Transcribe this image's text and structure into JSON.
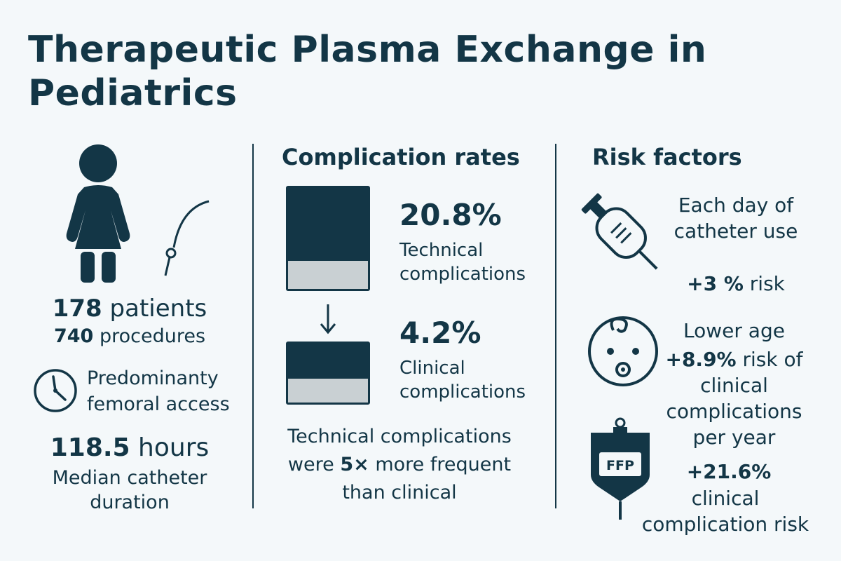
{
  "title": "Therapeutic Plasma Exchange in Pediatrics",
  "left": {
    "patients_value": "178",
    "patients_label": "patients",
    "procedures_value": "740",
    "procedures_label": "procedures",
    "access_text": "Predominanty femoral access",
    "duration_value": "118.5",
    "duration_unit": "hours",
    "duration_label": "Median catheter duration"
  },
  "middle": {
    "heading": "Complication rates",
    "technical_pct": "20.8%",
    "technical_label": "Technical complications",
    "clinical_pct": "4.2%",
    "clinical_label": "Clinical complications",
    "note_prefix": "Technical complications were",
    "note_multiplier": "5×",
    "note_suffix": "more frequent than clinical"
  },
  "right": {
    "heading": "Risk factors",
    "catheter_text": "Each day of catheter use",
    "catheter_effect_value": "+3 %",
    "catheter_effect_label": "risk",
    "age_text": "Lower age",
    "age_effect_value": "+8.9%",
    "age_effect_label": "risk of clinical complications per year",
    "ffp_badge": "FFP",
    "ffp_effect_value": "+21.6%",
    "ffp_effect_label": "clinical complication risk"
  },
  "colors": {
    "primary": "#133646",
    "background": "#f4f8fa",
    "bar_fill": "#c9d0d3"
  },
  "icons": [
    "person-icon",
    "catheter-icon",
    "clock-icon",
    "down-arrow-icon",
    "syringe-icon",
    "baby-face-icon",
    "ffp-bag-icon"
  ]
}
